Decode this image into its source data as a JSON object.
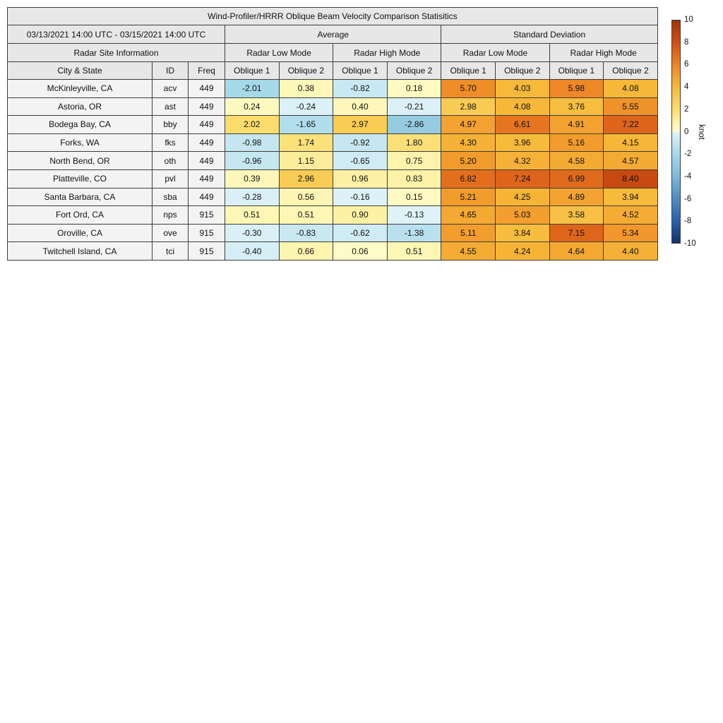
{
  "title": "Wind-Profiler/HRRR Oblique Beam Velocity Comparison Statisitics",
  "date_range": "03/13/2021 14:00 UTC - 03/15/2021 14:00 UTC",
  "sections": {
    "average": "Average",
    "std_dev": "Standard Deviation",
    "site_info": "Radar Site Information"
  },
  "modes": [
    "Radar Low Mode",
    "Radar High Mode",
    "Radar Low Mode",
    "Radar High Mode"
  ],
  "columns": {
    "city": "City & State",
    "id": "ID",
    "freq": "Freq",
    "oblique1": "Oblique 1",
    "oblique2": "Oblique 2"
  },
  "chart_data": {
    "type": "heatmap",
    "title": "Wind-Profiler/HRRR Oblique Beam Velocity Comparison Statisitics",
    "subtitle": "03/13/2021 14:00 UTC - 03/15/2021 14:00 UTC",
    "value_unit": "knot",
    "value_range": [
      -10,
      10
    ],
    "value_columns": [
      "Average Radar Low Mode Oblique 1",
      "Average Radar Low Mode Oblique 2",
      "Average Radar High Mode Oblique 1",
      "Average Radar High Mode Oblique 2",
      "Standard Deviation Radar Low Mode Oblique 1",
      "Standard Deviation Radar Low Mode Oblique 2",
      "Standard Deviation Radar High Mode Oblique 1",
      "Standard Deviation Radar High Mode Oblique 2"
    ],
    "rows": [
      {
        "city": "McKinleyville, CA",
        "id": "acv",
        "freq": "449",
        "values": [
          -2.01,
          0.38,
          -0.82,
          0.18,
          5.7,
          4.03,
          5.98,
          4.08
        ]
      },
      {
        "city": "Astoria, OR",
        "id": "ast",
        "freq": "449",
        "values": [
          0.24,
          -0.24,
          0.4,
          -0.21,
          2.98,
          4.08,
          3.76,
          5.55
        ]
      },
      {
        "city": "Bodega Bay, CA",
        "id": "bby",
        "freq": "449",
        "values": [
          2.02,
          -1.65,
          2.97,
          -2.86,
          4.97,
          6.61,
          4.91,
          7.22
        ]
      },
      {
        "city": "Forks, WA",
        "id": "fks",
        "freq": "449",
        "values": [
          -0.98,
          1.74,
          -0.92,
          1.8,
          4.3,
          3.96,
          5.16,
          4.15
        ]
      },
      {
        "city": "North Bend, OR",
        "id": "oth",
        "freq": "449",
        "values": [
          -0.96,
          1.15,
          -0.65,
          0.75,
          5.2,
          4.32,
          4.58,
          4.57
        ]
      },
      {
        "city": "Platteville, CO",
        "id": "pvl",
        "freq": "449",
        "values": [
          0.39,
          2.96,
          0.96,
          0.83,
          6.82,
          7.24,
          6.99,
          8.4
        ]
      },
      {
        "city": "Santa Barbara, CA",
        "id": "sba",
        "freq": "449",
        "values": [
          -0.28,
          0.56,
          -0.16,
          0.15,
          5.21,
          4.25,
          4.89,
          3.94
        ]
      },
      {
        "city": "Fort Ord, CA",
        "id": "nps",
        "freq": "915",
        "values": [
          0.51,
          0.51,
          0.9,
          -0.13,
          4.65,
          5.03,
          3.58,
          4.52
        ]
      },
      {
        "city": "Oroville, CA",
        "id": "ove",
        "freq": "915",
        "values": [
          -0.3,
          -0.83,
          -0.62,
          -1.38,
          5.11,
          3.84,
          7.15,
          5.34
        ]
      },
      {
        "city": "Twitchell Island, CA",
        "id": "tci",
        "freq": "915",
        "values": [
          -0.4,
          0.66,
          0.06,
          0.51,
          4.55,
          4.24,
          4.64,
          4.4
        ]
      }
    ]
  },
  "colorbar": {
    "label": "knot",
    "min": -10,
    "max": 10,
    "ticks": [
      10,
      8,
      6,
      4,
      2,
      0,
      -2,
      -4,
      -6,
      -8,
      -10
    ],
    "colormap": [
      [
        -10,
        "#14306b"
      ],
      [
        -8,
        "#2a62ac"
      ],
      [
        -6,
        "#4b8ec5"
      ],
      [
        -4,
        "#7fbada"
      ],
      [
        -2,
        "#a6d9e7"
      ],
      [
        -1,
        "#c4e6f0"
      ],
      [
        -0.001,
        "#e2f4f9"
      ],
      [
        0,
        "#fefcc8"
      ],
      [
        1,
        "#fdf0a2"
      ],
      [
        2,
        "#fbdc6d"
      ],
      [
        4,
        "#f7ba3a"
      ],
      [
        6,
        "#ee8625"
      ],
      [
        8,
        "#d24f14"
      ],
      [
        10,
        "#a1330a"
      ]
    ]
  }
}
